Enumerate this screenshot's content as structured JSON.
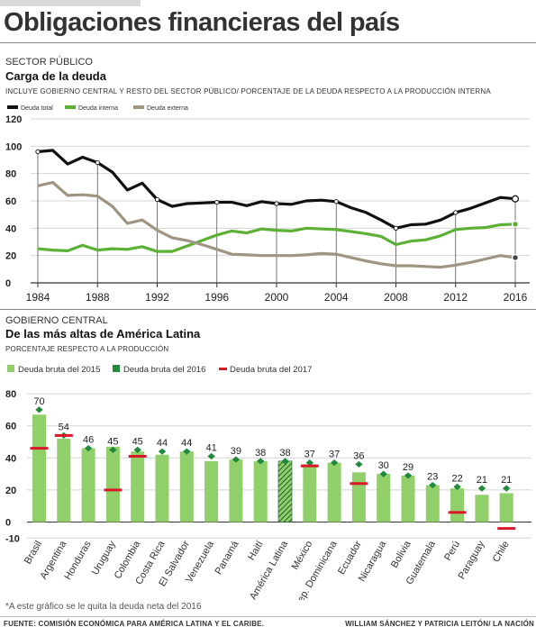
{
  "header": {
    "title": "Obligaciones financieras del país"
  },
  "top_section": {
    "label": "SECTOR PÚBLICO",
    "title": "Carga de la deuda",
    "subtitle": "INCLUYE GOBIERNO CENTRAL Y RESTO DEL SECTOR PÚBLICO/ PORCENTAJE DE LA DEUDA RESPECTO A LA PRODUCCIÓN INTERNA"
  },
  "bottom_section": {
    "label": "GOBIERNO CENTRAL",
    "title": "De las más altas de América Latina",
    "subtitle": "PORCENTAJE RESPECTO A LA PRODUCCIÓN"
  },
  "note": "*A este gráfico se le quita la deuda neta del 2016",
  "footer": {
    "source": "FUENTE: COMISIÓN ECONÓMICA PARA AMÉRICA LATINA Y EL CARIBE.",
    "credit": "WILLIAM SÁNCHEZ Y PATRICIA LEITÓN/ LA NACIÓN"
  },
  "colors": {
    "total": "#111111",
    "interna": "#5cb135",
    "externa": "#a09482",
    "bar": "#90cf6a",
    "diamond": "#1f8a3c",
    "dash": "#d9182a"
  },
  "chart_data": [
    {
      "type": "line",
      "x": [
        1984,
        1985,
        1986,
        1987,
        1988,
        1989,
        1990,
        1991,
        1992,
        1993,
        1994,
        1995,
        1996,
        1997,
        1998,
        1999,
        2000,
        2001,
        2002,
        2003,
        2004,
        2005,
        2006,
        2007,
        2008,
        2009,
        2010,
        2011,
        2012,
        2013,
        2014,
        2015,
        2016
      ],
      "series": [
        {
          "name": "Deuda total",
          "values": [
            96,
            97,
            87,
            92,
            88,
            81,
            68,
            73,
            61,
            56,
            58,
            58.5,
            59,
            59,
            56.5,
            59.5,
            58,
            57.5,
            60,
            60.5,
            59.5,
            55,
            51.5,
            46,
            40,
            42.5,
            43,
            46,
            51.5,
            54.5,
            58.5,
            62.5,
            61.5
          ]
        },
        {
          "name": "Deuda interna",
          "values": [
            25,
            24,
            23.5,
            27.5,
            24,
            25,
            24.5,
            26.5,
            23,
            23,
            27,
            31,
            35,
            38,
            36.5,
            39.5,
            38.5,
            38,
            40,
            39.5,
            39,
            37.5,
            36,
            34,
            28,
            30.5,
            31.5,
            34.5,
            39,
            40,
            40.5,
            42.5,
            43
          ]
        },
        {
          "name": "Deuda externa",
          "values": [
            71,
            73.5,
            64,
            64.5,
            63.5,
            56,
            43.5,
            46,
            38.5,
            33,
            31,
            28,
            24.5,
            21,
            20.5,
            20,
            20,
            20,
            20.5,
            21.5,
            21,
            18.5,
            16,
            14,
            12.5,
            12.5,
            12,
            11.5,
            13,
            15,
            17.5,
            20,
            18.5
          ]
        }
      ],
      "markers": [
        1984,
        1988,
        1992,
        1996,
        2000,
        2004,
        2008,
        2012,
        2016
      ],
      "x_ticks": [
        1984,
        1988,
        1992,
        1996,
        2000,
        2004,
        2008,
        2012,
        2016
      ],
      "y_ticks": [
        0,
        20,
        40,
        60,
        80,
        100,
        120
      ],
      "ylim": [
        0,
        120
      ],
      "legend": [
        "Deuda total",
        "Deuda interna",
        "Deuda externa"
      ],
      "legend_position": "top-left"
    },
    {
      "type": "bar",
      "categories": [
        "Brasil",
        "Argentina",
        "Honduras",
        "Uruguay",
        "Colombia",
        "Costa Rica",
        "El Salvador",
        "Venezuela",
        "Panamá",
        "Haití",
        "América Latina",
        "México",
        "Rep. Dominicana",
        "Ecuador",
        "Nicaragua",
        "Bolivia",
        "Guatemala",
        "Perú",
        "Paraguay",
        "Chile"
      ],
      "legend": [
        "Deuda bruta del 2015",
        "Deuda bruta del 2016",
        "Deuda bruta del 2017"
      ],
      "legend_position": "top-left",
      "series": [
        {
          "name": "Deuda bruta del 2015",
          "values": [
            67,
            52,
            46,
            47,
            44,
            42,
            44,
            38,
            39,
            38,
            38,
            36,
            37,
            31,
            30,
            29,
            23,
            21,
            17,
            18
          ]
        },
        {
          "name": "Deuda bruta del 2016",
          "values": [
            70,
            54,
            46,
            45,
            45,
            44,
            44,
            41,
            39,
            38,
            38,
            37,
            37,
            36,
            30,
            29,
            23,
            22,
            21,
            21
          ]
        },
        {
          "name": "Deuda bruta del 2017",
          "values": [
            46,
            54,
            null,
            20,
            41,
            null,
            null,
            null,
            null,
            null,
            null,
            35,
            null,
            24,
            null,
            null,
            null,
            6,
            null,
            -4
          ]
        }
      ],
      "data_labels": [
        "70",
        "54",
        "46",
        "45",
        "45",
        "44",
        "44",
        "41",
        "39",
        "38",
        "38",
        "37",
        "37",
        "36",
        "30",
        "29",
        "23",
        "22",
        "21",
        "21"
      ],
      "highlight": "América Latina",
      "y_ticks": [
        -10,
        0,
        20,
        40,
        60,
        80
      ],
      "ylim": [
        -10,
        80
      ]
    }
  ]
}
